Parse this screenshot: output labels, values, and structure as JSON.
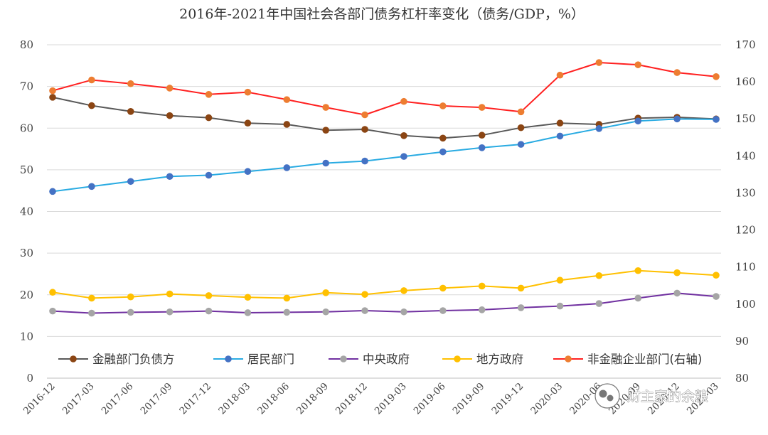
{
  "chart_data": {
    "type": "line",
    "title": "2016年-2021年中国社会各部门债务杠杆率变化（债务/GDP，%）",
    "categories": [
      "2016-12",
      "2017-03",
      "2017-06",
      "2017-09",
      "2017-12",
      "2018-03",
      "2018-06",
      "2018-09",
      "2018-12",
      "2019-03",
      "2019-06",
      "2019-09",
      "2019-12",
      "2020-03",
      "2020-06",
      "2020-09",
      "2020-12",
      "2021-03"
    ],
    "y_left": {
      "min": 0,
      "max": 80,
      "step": 10
    },
    "y_right": {
      "min": 80,
      "max": 170,
      "step": 10
    },
    "grid": true,
    "legend_position": "bottom",
    "series": [
      {
        "name": "金融部门负债方",
        "axis": "left",
        "line_color": "#595959",
        "marker_color": "#8B4513",
        "values": [
          67.4,
          65.4,
          64.0,
          63.0,
          62.5,
          61.2,
          60.9,
          59.5,
          59.7,
          58.2,
          57.6,
          58.3,
          60.1,
          61.2,
          60.9,
          62.4,
          62.6,
          62.2
        ]
      },
      {
        "name": "居民部门",
        "axis": "left",
        "line_color": "#29ABE2",
        "marker_color": "#4472C4",
        "values": [
          44.8,
          46.0,
          47.2,
          48.4,
          48.7,
          49.6,
          50.5,
          51.6,
          52.1,
          53.2,
          54.3,
          55.3,
          56.1,
          58.1,
          59.9,
          61.7,
          62.2,
          62.1
        ]
      },
      {
        "name": "中央政府",
        "axis": "left",
        "line_color": "#7030A0",
        "marker_color": "#A5A5A5",
        "values": [
          16.1,
          15.6,
          15.8,
          15.9,
          16.1,
          15.7,
          15.8,
          15.9,
          16.2,
          15.9,
          16.2,
          16.4,
          16.9,
          17.3,
          17.9,
          19.2,
          20.4,
          19.6
        ]
      },
      {
        "name": "地方政府",
        "axis": "left",
        "line_color": "#FFC000",
        "marker_color": "#FFC000",
        "values": [
          20.6,
          19.2,
          19.5,
          20.2,
          19.8,
          19.4,
          19.2,
          20.5,
          20.1,
          21.0,
          21.6,
          22.1,
          21.6,
          23.5,
          24.6,
          25.8,
          25.3,
          24.7
        ]
      },
      {
        "name": "非金融企业部门(右轴)",
        "axis": "right",
        "line_color": "#FF2020",
        "marker_color": "#ED7D31",
        "values": [
          157.6,
          160.5,
          159.5,
          158.3,
          156.6,
          157.2,
          155.2,
          153.1,
          151.1,
          154.7,
          153.5,
          153.1,
          151.9,
          161.8,
          165.2,
          164.6,
          162.5,
          161.4
        ]
      }
    ]
  },
  "watermark": {
    "text": "财主家的余粮"
  }
}
